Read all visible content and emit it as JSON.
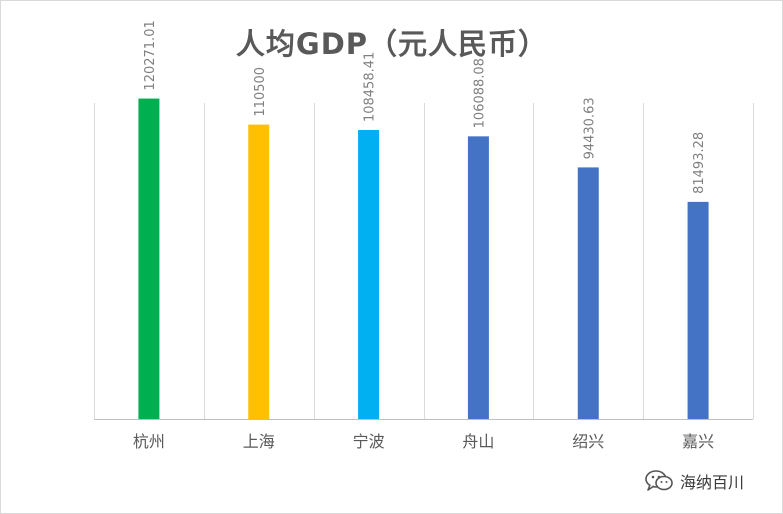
{
  "chart_data": {
    "type": "bar",
    "title": "人均GDP（元人民币）",
    "categories": [
      "杭州",
      "上海",
      "宁波",
      "舟山",
      "绍兴",
      "嘉兴"
    ],
    "values": [
      120271.01,
      110500,
      108458.41,
      106088.08,
      94430.63,
      81493.28
    ],
    "value_labels": [
      "120271.01",
      "110500",
      "108458.41",
      "106088.08",
      "94430.63",
      "81493.28"
    ],
    "bar_colors": [
      "#00b050",
      "#ffc000",
      "#00b0f0",
      "#4472c4",
      "#4472c4",
      "#4472c4"
    ],
    "xlabel": "",
    "ylabel": "",
    "ylim": [
      0,
      140000
    ],
    "grid": "vertical separators",
    "legend": "none"
  },
  "watermark": {
    "icon": "wechat-icon",
    "text": "海纳百川"
  }
}
